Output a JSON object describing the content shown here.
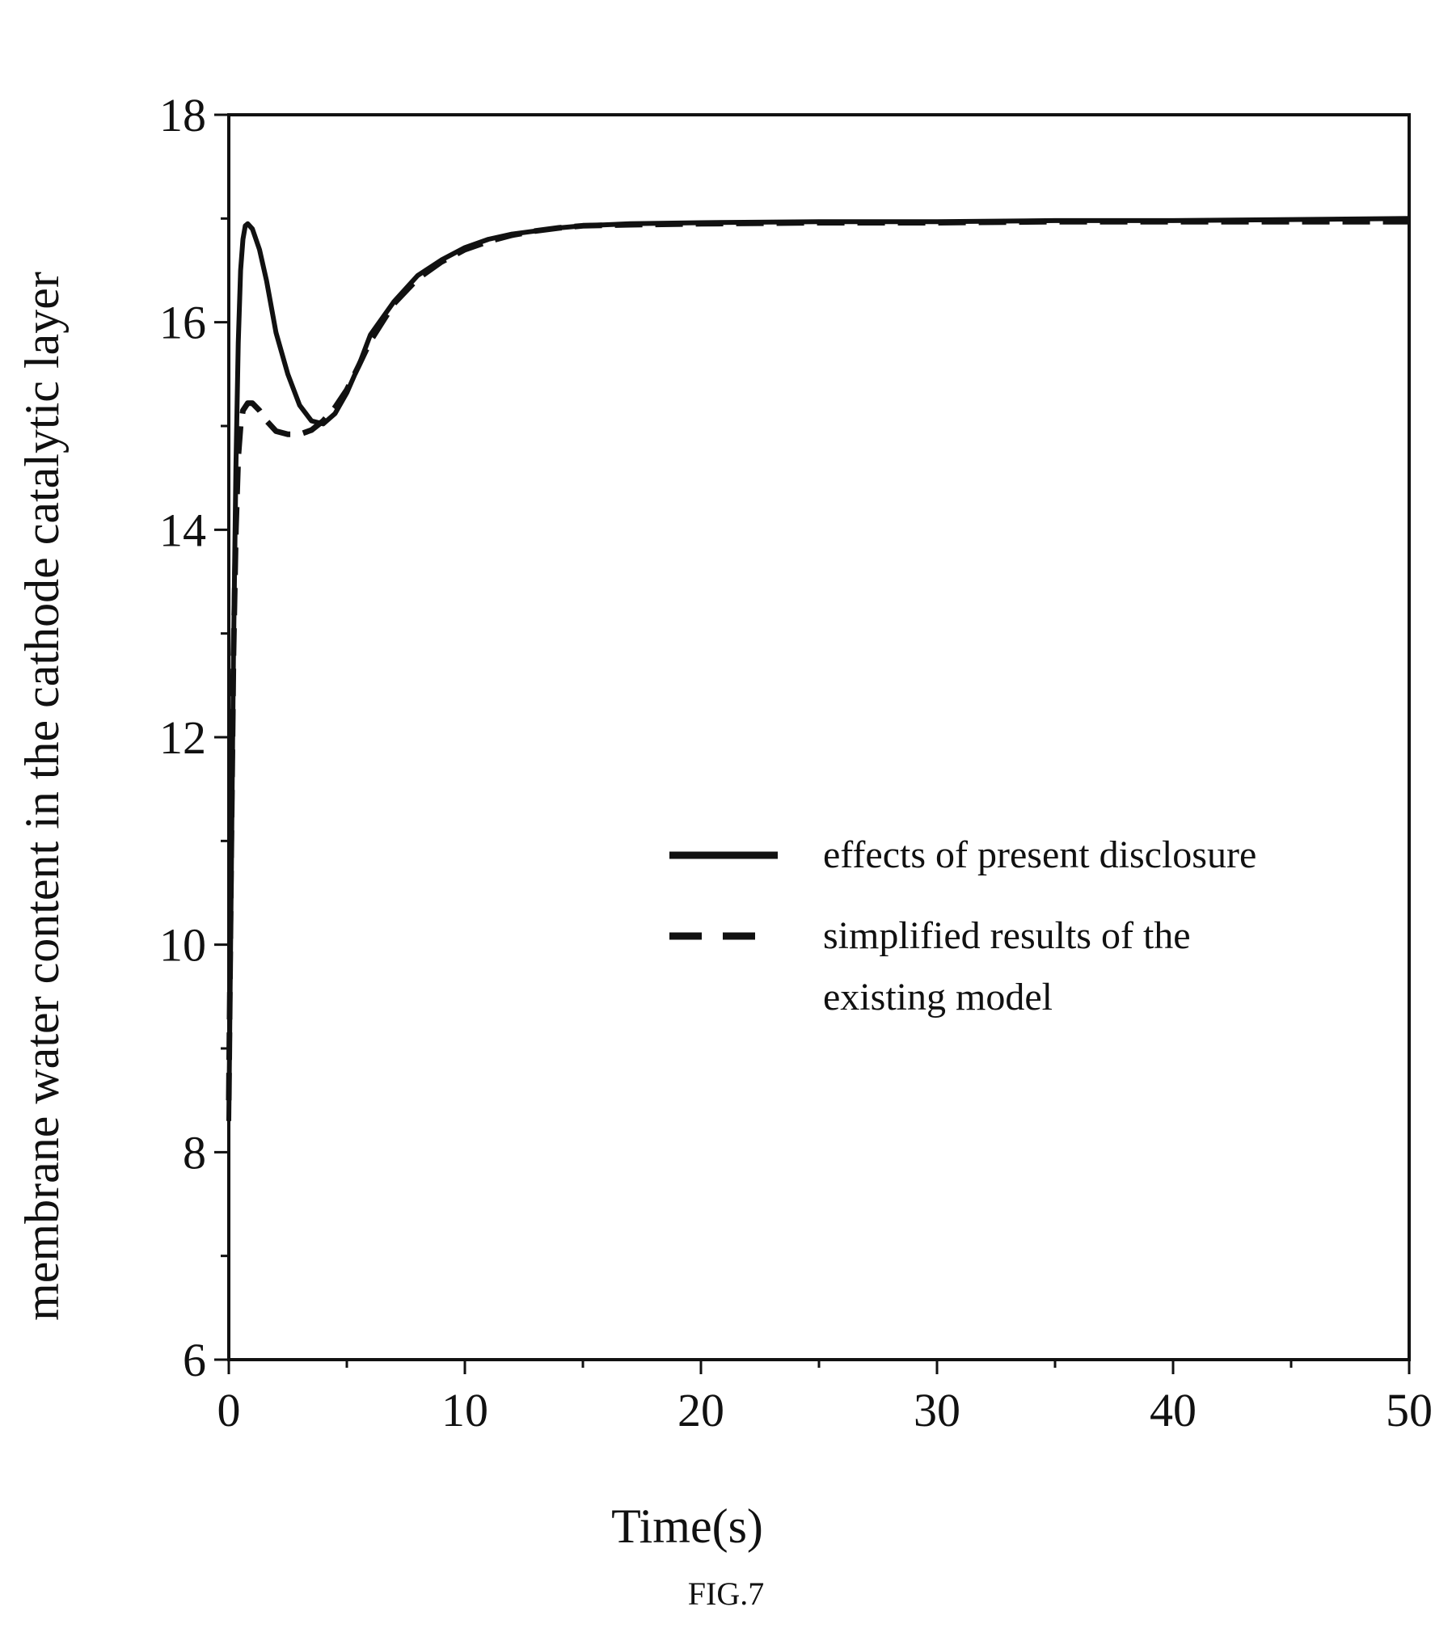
{
  "figure": {
    "caption": "FIG.7"
  },
  "chart_data": {
    "type": "line",
    "title": "",
    "xlabel": "Time(s)",
    "ylabel": "membrane water content in the cathode catalytic layer",
    "xlim": [
      0,
      50
    ],
    "ylim": [
      6,
      18
    ],
    "xticks": [
      0,
      10,
      20,
      30,
      40,
      50
    ],
    "yticks": [
      6,
      8,
      10,
      12,
      14,
      16,
      18
    ],
    "x_minor_step": 5,
    "y_minor_step": 1,
    "grid": false,
    "legend_position": "center-right",
    "series": [
      {
        "name": "effects of present disclosure",
        "style": "solid",
        "color": "#111111",
        "x": [
          0,
          0.1,
          0.2,
          0.3,
          0.4,
          0.5,
          0.6,
          0.7,
          0.8,
          1.0,
          1.3,
          1.6,
          2.0,
          2.5,
          3.0,
          3.5,
          4.0,
          4.5,
          5.0,
          5.5,
          6.0,
          7.0,
          8.0,
          9.0,
          10.0,
          11.0,
          12.0,
          13.0,
          14.0,
          15.0,
          17.0,
          20.0,
          25.0,
          30.0,
          35.0,
          40.0,
          45.0,
          50.0
        ],
        "values": [
          8.3,
          10.5,
          12.8,
          14.6,
          15.8,
          16.5,
          16.8,
          16.93,
          16.95,
          16.9,
          16.7,
          16.4,
          15.9,
          15.5,
          15.2,
          15.05,
          15.02,
          15.12,
          15.32,
          15.58,
          15.88,
          16.2,
          16.45,
          16.6,
          16.72,
          16.8,
          16.85,
          16.88,
          16.91,
          16.93,
          16.95,
          16.96,
          16.97,
          16.97,
          16.98,
          16.98,
          16.99,
          17.0
        ]
      },
      {
        "name": "simplified results of the existing model",
        "style": "dashed",
        "color": "#111111",
        "x": [
          0,
          0.1,
          0.2,
          0.3,
          0.4,
          0.5,
          0.6,
          0.8,
          1.0,
          1.3,
          1.6,
          2.0,
          2.5,
          3.0,
          3.5,
          4.0,
          4.5,
          5.0,
          5.5,
          6.0,
          7.0,
          8.0,
          9.0,
          10.0,
          11.0,
          12.0,
          13.0,
          14.0,
          15.0,
          17.0,
          20.0,
          25.0,
          30.0,
          35.0,
          40.0,
          45.0,
          50.0
        ],
        "values": [
          8.5,
          10.8,
          12.8,
          14.0,
          14.7,
          15.0,
          15.15,
          15.22,
          15.22,
          15.15,
          15.05,
          14.95,
          14.92,
          14.92,
          14.96,
          15.05,
          15.18,
          15.35,
          15.58,
          15.82,
          16.18,
          16.42,
          16.58,
          16.7,
          16.78,
          16.84,
          16.88,
          16.91,
          16.93,
          16.94,
          16.95,
          16.96,
          16.96,
          16.97,
          16.97,
          16.97,
          16.97
        ]
      }
    ]
  }
}
